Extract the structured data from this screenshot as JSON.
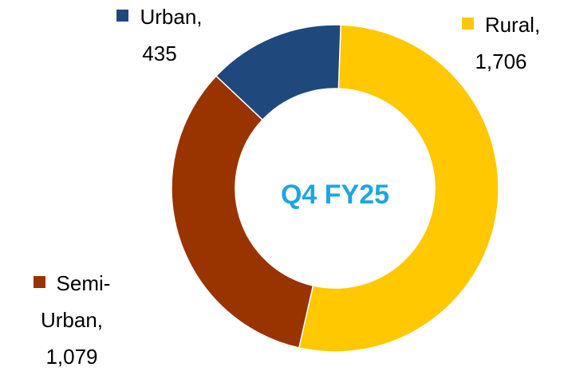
{
  "chart_data": {
    "type": "donut",
    "center_text": "Q4 FY25",
    "categories": [
      "Rural,",
      "Semi-Urban,",
      "Urban,"
    ],
    "values": [
      1706,
      1079,
      435
    ],
    "value_labels": [
      "1,706",
      "1,079",
      "435"
    ],
    "colors": [
      "#FFC800",
      "#993300",
      "#1F497D"
    ]
  }
}
